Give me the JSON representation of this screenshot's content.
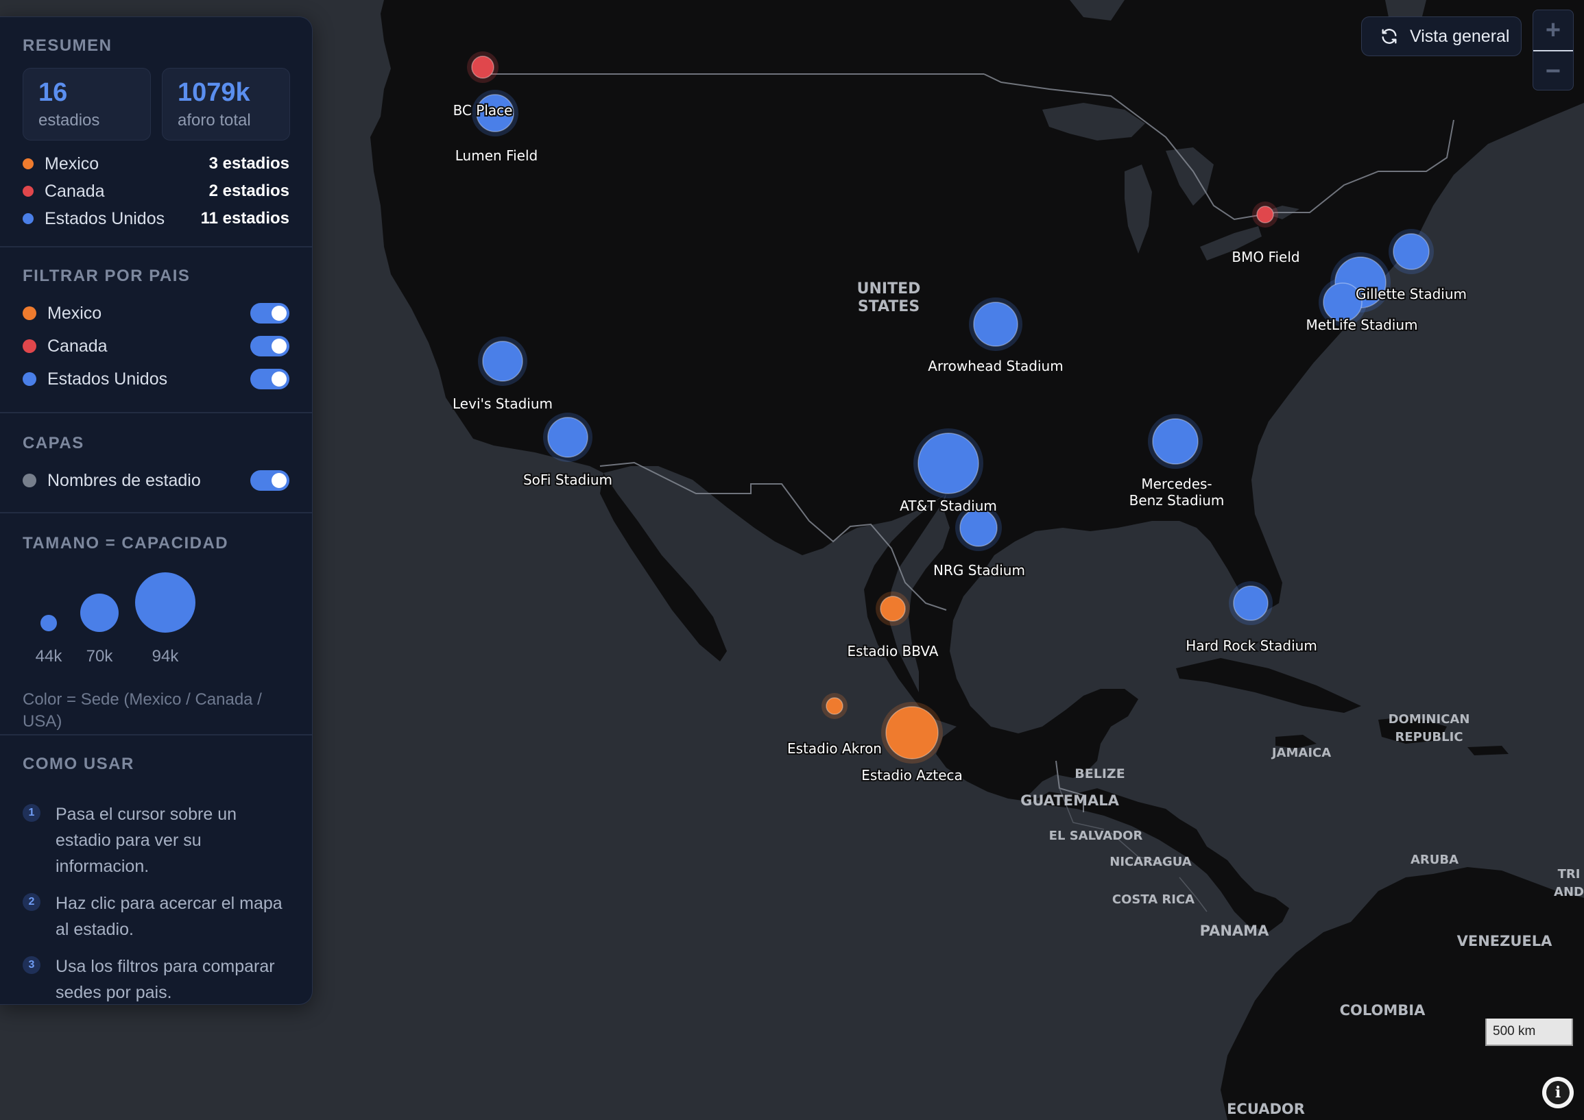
{
  "summary": {
    "title": "RESUMEN",
    "stadiums_count": "16",
    "stadiums_label": "estadios",
    "capacity_total": "1079k",
    "capacity_label": "aforo total",
    "countries": [
      {
        "name": "Mexico",
        "count": "3 estadios",
        "color": "#ef7b2e"
      },
      {
        "name": "Canada",
        "count": "2 estadios",
        "color": "#e0474c"
      },
      {
        "name": "Estados Unidos",
        "count": "11 estadios",
        "color": "#4a7fe8"
      }
    ]
  },
  "filter": {
    "title": "FILTRAR POR PAIS",
    "items": [
      {
        "name": "Mexico",
        "color": "#ef7b2e",
        "on": true
      },
      {
        "name": "Canada",
        "color": "#e0474c",
        "on": true
      },
      {
        "name": "Estados Unidos",
        "color": "#4a7fe8",
        "on": true
      }
    ]
  },
  "layers": {
    "title": "CAPAS",
    "items": [
      {
        "name": "Nombres de estadio",
        "color": "#777f8c",
        "on": true
      }
    ]
  },
  "legend": {
    "title": "TAMANO = CAPACIDAD",
    "sizes": [
      "44k",
      "70k",
      "94k"
    ],
    "note": "Color = Sede (Mexico / Canada / USA)"
  },
  "howto": {
    "title": "COMO USAR",
    "steps": [
      {
        "n": "1",
        "text": "Pasa el cursor sobre un estadio para ver su informacion."
      },
      {
        "n": "2",
        "text": "Haz clic para acercar el mapa al estadio."
      },
      {
        "n": "3",
        "text": "Usa los filtros para comparar sedes por pais."
      }
    ]
  },
  "controls": {
    "overview_label": "Vista general",
    "overview_icon": "refresh-icon",
    "zoom_in": "+",
    "zoom_out": "−",
    "scale": "500 km",
    "info": "i"
  },
  "colors": {
    "mexico": "#ef7b2e",
    "canada": "#e0474c",
    "usa": "#4a7fe8",
    "land": "#0e0e0f",
    "water": "#2b2f36"
  },
  "stadiums": [
    {
      "name": "BC Place",
      "country": "canada"
    },
    {
      "name": "Lumen Field",
      "country": "usa"
    },
    {
      "name": "BMO Field",
      "country": "canada"
    },
    {
      "name": "Gillette Stadium",
      "country": "usa"
    },
    {
      "name": "MetLife Stadium",
      "country": "usa"
    },
    {
      "name": "Arrowhead Stadium",
      "country": "usa"
    },
    {
      "name": "Levi's Stadium",
      "country": "usa"
    },
    {
      "name": "SoFi Stadium",
      "country": "usa"
    },
    {
      "name": "AT&T Stadium",
      "country": "usa"
    },
    {
      "name": "Mercedes-Benz Stadium",
      "country": "usa"
    },
    {
      "name": "NRG Stadium",
      "country": "usa"
    },
    {
      "name": "Hard Rock Stadium",
      "country": "usa"
    },
    {
      "name": "Estadio BBVA",
      "country": "mexico"
    },
    {
      "name": "Estadio Akron",
      "country": "mexico"
    },
    {
      "name": "Estadio Azteca",
      "country": "mexico"
    },
    {
      "name": "",
      "country": "usa"
    }
  ],
  "geo_labels": [
    "UNITED STATES",
    "BELIZE",
    "GUATEMALA",
    "EL SALVADOR",
    "NICARAGUA",
    "COSTA RICA",
    "PANAMA",
    "JAMAICA",
    "DOMINICAN REPUBLIC",
    "ARUBA",
    "TRI AND",
    "VENEZUELA",
    "COLOMBIA",
    "ECUADOR"
  ]
}
